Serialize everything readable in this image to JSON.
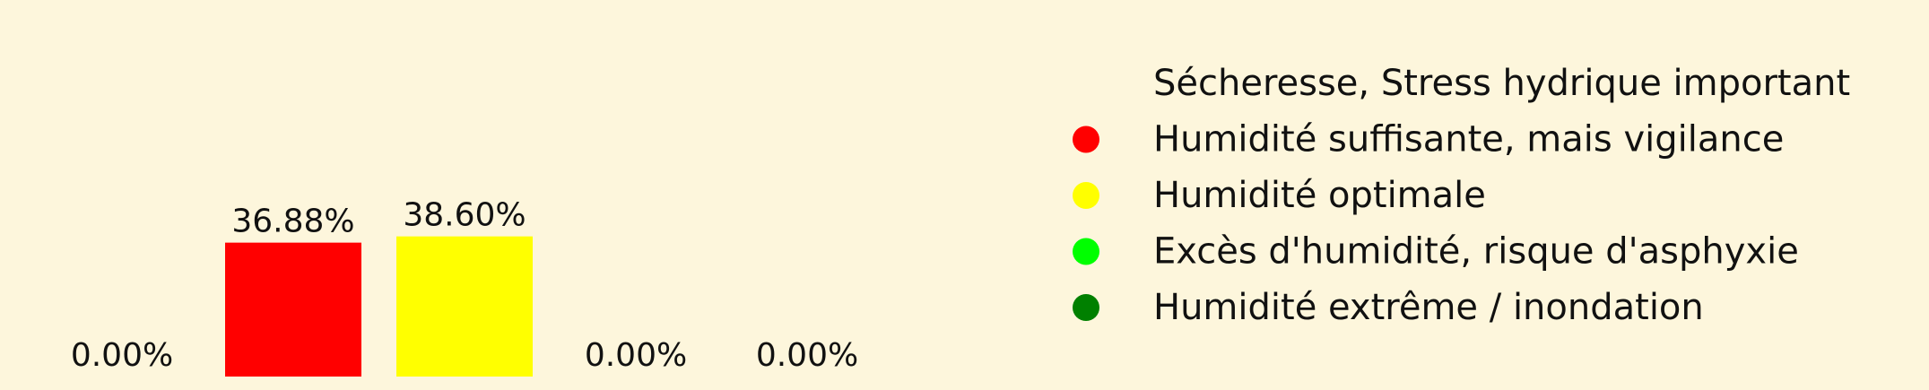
{
  "chart_data": {
    "type": "bar",
    "categories": [
      "Sécheresse, Stress hydrique important",
      "Humidité suffisante, mais vigilance",
      "Humidité optimale",
      "Excès d'humidité, risque d'asphyxie",
      "Humidité extrême / inondation"
    ],
    "values": [
      0.0,
      36.88,
      38.6,
      0.0,
      0.0
    ],
    "value_labels": [
      "0.00%",
      "36.88%",
      "38.60%",
      "0.00%",
      "0.00%"
    ],
    "colors": [
      "#fdf6dc",
      "#ff0000",
      "#ffff00",
      "#00ff00",
      "#008000"
    ],
    "legend": {
      "placement": "right",
      "entries": [
        {
          "label": "Sécheresse, Stress hydrique important",
          "color": "#fdf6dc"
        },
        {
          "label": "Humidité suffisante, mais vigilance",
          "color": "#ff0000"
        },
        {
          "label": "Humidité optimale",
          "color": "#ffff00"
        },
        {
          "label": "Excès d'humidité, risque d'asphyxie",
          "color": "#00ff00"
        },
        {
          "label": "Humidité extrême / inondation",
          "color": "#008000"
        }
      ]
    },
    "title": "",
    "xlabel": "",
    "ylabel": "",
    "axes_visible": false,
    "grid": false,
    "background_color": "#fdf6dc"
  }
}
